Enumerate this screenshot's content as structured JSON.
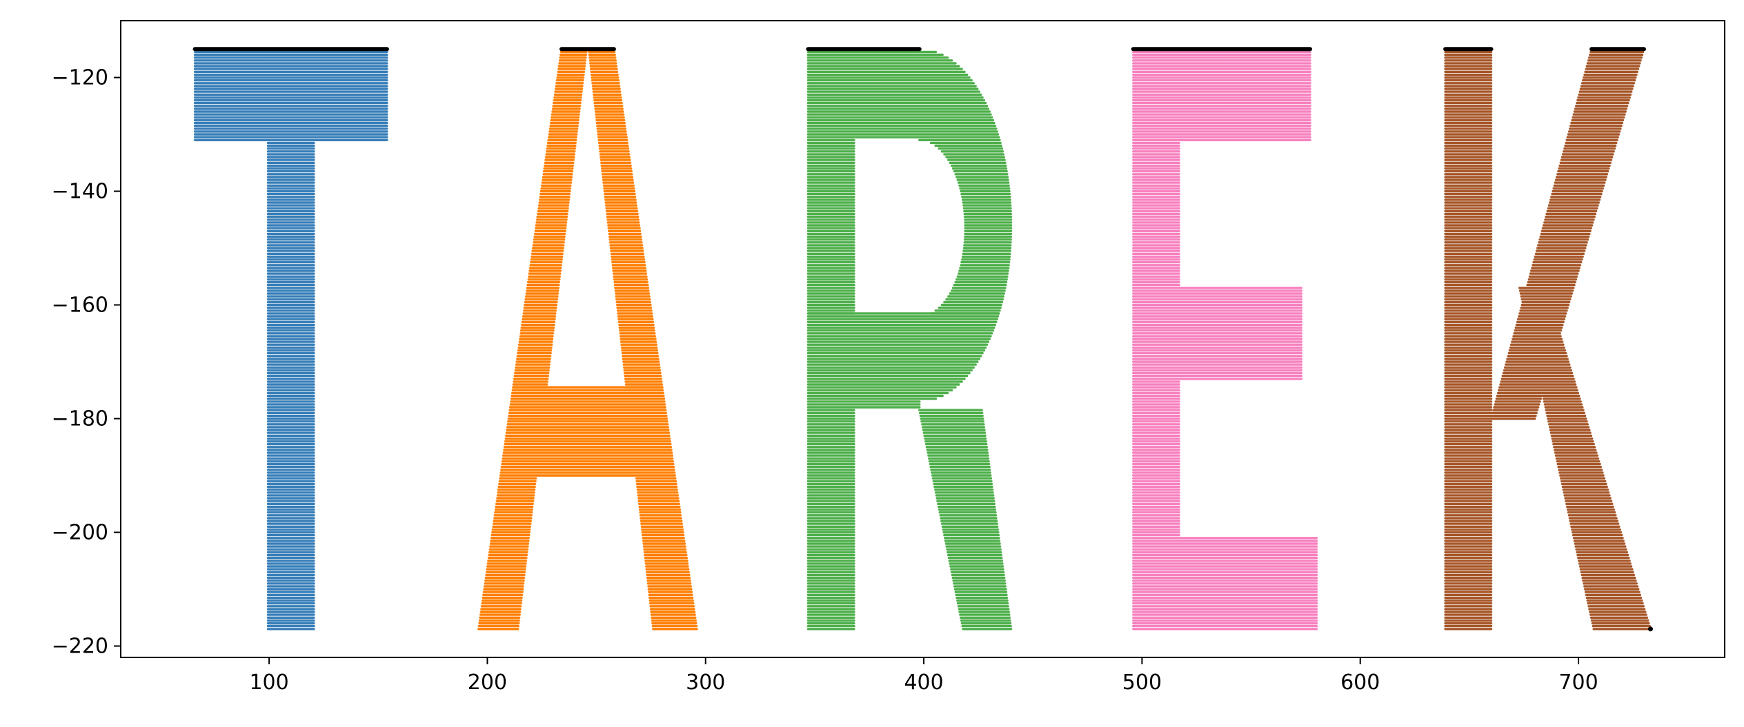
{
  "chart_data": {
    "type": "scatter",
    "title": "",
    "xlabel": "",
    "ylabel": "",
    "xlim": [
      32,
      767
    ],
    "ylim": [
      -222,
      -110
    ],
    "xticks": [
      100,
      200,
      300,
      400,
      500,
      600,
      700
    ],
    "yticks": [
      -120,
      -140,
      -160,
      -180,
      -200,
      -220
    ],
    "xtick_labels": [
      "100",
      "200",
      "300",
      "400",
      "500",
      "600",
      "700"
    ],
    "ytick_labels": [
      "−120",
      "−140",
      "−160",
      "−180",
      "−200",
      "−220"
    ],
    "grid": false,
    "legend": "none",
    "row_spacing": 0.5,
    "series": [
      {
        "color": "#377eb8",
        "rows": [
          [
            -131,
            -115,
            [
              [
                66,
                154
              ]
            ]
          ],
          [
            -217,
            -131.5,
            [
              [
                99.5,
                120.5
              ]
            ]
          ]
        ]
      },
      {
        "color": "#ff7f00",
        "rows": [
          [
            -174.5,
            -115,
            "A_sides"
          ],
          [
            -190,
            -174.5,
            [
              [
                "A_outer_left",
                "A_outer_right"
              ]
            ]
          ],
          [
            -217,
            -190.5,
            "A_sides"
          ]
        ]
      },
      {
        "color": "#4daf4a",
        "rows": [
          [
            -161.5,
            -115,
            "R_bowl"
          ],
          [
            -178,
            -161.5,
            [
              [
                347,
                "R_bowl_right"
              ]
            ]
          ],
          [
            -217,
            -178.5,
            "R_leg"
          ]
        ]
      },
      {
        "color": "#f781bf",
        "rows": [
          [
            -131,
            -115,
            [
              [
                496,
                577
              ]
            ]
          ],
          [
            -157,
            -131.5,
            [
              [
                496,
                517
              ]
            ]
          ],
          [
            -173,
            -157,
            [
              [
                496,
                573
              ]
            ]
          ],
          [
            -200.5,
            -173.5,
            [
              [
                496,
                517
              ]
            ]
          ],
          [
            -217,
            -201,
            [
              [
                496,
                580
              ]
            ]
          ]
        ]
      },
      {
        "color": "#a65628",
        "rows": [
          [
            -217,
            -115,
            "K_shape"
          ]
        ]
      }
    ],
    "top_markers": {
      "color": "#000000",
      "y": -115,
      "segments": [
        [
          66,
          154
        ],
        [
          234,
          258
        ],
        [
          347,
          398
        ],
        [
          496,
          577
        ],
        [
          639,
          660
        ],
        [
          706,
          730
        ]
      ]
    },
    "corner_point": {
      "color": "#000000",
      "x": 733,
      "y": -217
    }
  }
}
